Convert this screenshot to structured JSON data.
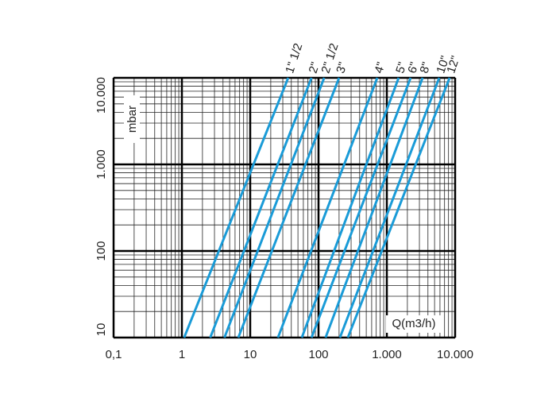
{
  "chart_data": {
    "type": "line",
    "x_label": "Q(m3/h)",
    "y_label": "mbar",
    "xscale": "log",
    "yscale": "log",
    "xlim": [
      0.1,
      10000
    ],
    "ylim": [
      10,
      10000
    ],
    "xticks": [
      {
        "value": 0.1,
        "label": "0,1"
      },
      1,
      10,
      100,
      {
        "value": 1000,
        "label": "1.000"
      },
      {
        "value": 10000,
        "label": "10.000"
      }
    ],
    "yticks": [
      10,
      100,
      {
        "value": 1000,
        "label": "1.000"
      },
      {
        "value": 10000,
        "label": "10.000"
      }
    ],
    "grid": true,
    "minor_grid": true,
    "series": [
      {
        "name": "1\" 1/2",
        "color": "#1a9bd7",
        "x": [
          1.08,
          36
        ],
        "values": [
          10,
          10000
        ]
      },
      {
        "name": "2\"",
        "color": "#1a9bd7",
        "x": [
          2.6,
          79
        ],
        "values": [
          10,
          10000
        ]
      },
      {
        "name": "2\" 1/2",
        "color": "#1a9bd7",
        "x": [
          4.2,
          121
        ],
        "values": [
          10,
          10000
        ]
      },
      {
        "name": "3\"",
        "color": "#1a9bd7",
        "x": [
          6.7,
          200
        ],
        "values": [
          10,
          10000
        ]
      },
      {
        "name": "4\"",
        "color": "#1a9bd7",
        "x": [
          25.5,
          725
        ],
        "values": [
          10,
          10000
        ]
      },
      {
        "name": "5\"",
        "color": "#1a9bd7",
        "x": [
          57,
          1490
        ],
        "values": [
          10,
          10000
        ]
      },
      {
        "name": "6\"",
        "color": "#1a9bd7",
        "x": [
          79,
          2230
        ],
        "values": [
          10,
          10000
        ]
      },
      {
        "name": "8\"",
        "color": "#1a9bd7",
        "x": [
          127,
          3340
        ],
        "values": [
          10,
          10000
        ]
      },
      {
        "name": "10\"",
        "color": "#1a9bd7",
        "x": [
          206,
          5850
        ],
        "values": [
          10,
          10000
        ]
      },
      {
        "name": "12\"",
        "color": "#1a9bd7",
        "x": [
          269,
          8300
        ],
        "values": [
          10,
          10000
        ]
      }
    ]
  }
}
